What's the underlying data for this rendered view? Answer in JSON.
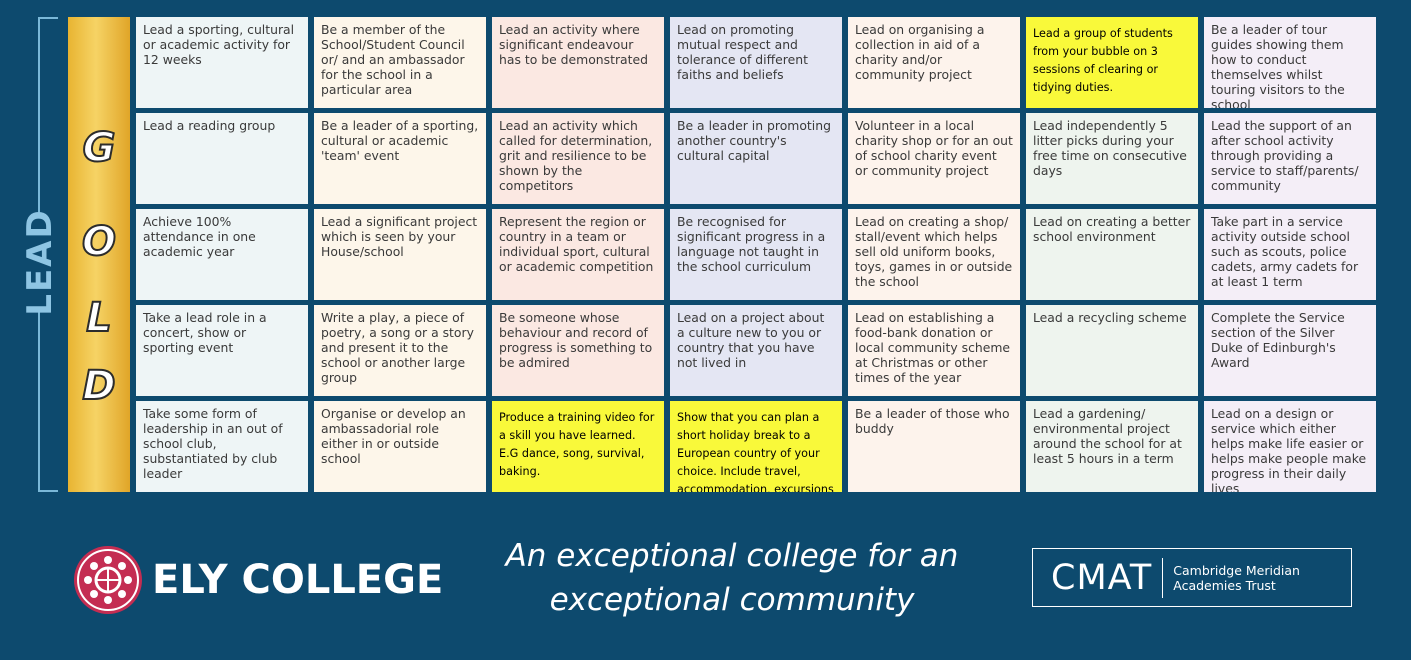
{
  "side_label": "LEAD",
  "level_letters": [
    "G",
    "O",
    "L",
    "D"
  ],
  "grid": {
    "rows": [
      [
        {
          "text": "Lead a sporting, cultural or academic activity for 12 weeks",
          "highlight": false
        },
        {
          "text": "Be a member of the School/Student Council or/ and an ambassador for the school in a particular area",
          "highlight": false
        },
        {
          "text": "Lead an activity where significant endeavour has to be demonstrated",
          "highlight": false
        },
        {
          "text": "Lead on promoting mutual respect and tolerance of different faiths and beliefs",
          "highlight": false
        },
        {
          "text": "Lead on organising a collection in aid of a charity and/or community project",
          "highlight": false
        },
        {
          "text": "Lead a group of students from your bubble on 3 sessions of clearing or tidying duties.",
          "highlight": true
        },
        {
          "text": "Be a leader of tour guides showing them how to conduct themselves whilst touring visitors to the school",
          "highlight": false
        }
      ],
      [
        {
          "text": "Lead a reading group",
          "highlight": false
        },
        {
          "text": "Be a leader of a sporting, cultural or academic 'team' event",
          "highlight": false
        },
        {
          "text": "Lead an activity which called for determination, grit and resilience to be shown by the competitors",
          "highlight": false
        },
        {
          "text": "Be a leader in promoting another country's cultural capital",
          "highlight": false
        },
        {
          "text": "Volunteer in a local charity shop or for an out of school charity event or community project",
          "highlight": false
        },
        {
          "text": "Lead independently 5 litter picks during your free time on consecutive days",
          "highlight": false
        },
        {
          "text": "Lead the support of an after school activity through providing a service to staff/parents/ community",
          "highlight": false
        }
      ],
      [
        {
          "text": "Achieve 100% attendance in one academic year",
          "highlight": false
        },
        {
          "text": "Lead a significant project which is seen by your House/school",
          "highlight": false
        },
        {
          "text": "Represent the region or country in a team or individual sport, cultural or academic competition",
          "highlight": false
        },
        {
          "text": "Be recognised for significant progress in a language not taught in the school curriculum",
          "highlight": false
        },
        {
          "text": "Lead on creating a shop/ stall/event which helps sell old uniform books, toys, games in or outside the school",
          "highlight": false
        },
        {
          "text": "Lead on creating a better school environment",
          "highlight": false
        },
        {
          "text": "Take part in a service activity outside school such as scouts, police cadets, army cadets for at least 1 term",
          "highlight": false
        }
      ],
      [
        {
          "text": "Take a lead role in a concert, show or sporting event",
          "highlight": false
        },
        {
          "text": "Write a play, a piece of poetry, a song or a story and present it to the school or another large group",
          "highlight": false
        },
        {
          "text": "Be someone whose behaviour and record of progress is something to be admired",
          "highlight": false
        },
        {
          "text": "Lead on a project about a culture new to you or country that you have not lived in",
          "highlight": false
        },
        {
          "text": "Lead on establishing a food-bank donation or local community scheme at Christmas or other times of the year",
          "highlight": false
        },
        {
          "text": "Lead a recycling scheme",
          "highlight": false
        },
        {
          "text": "Complete the Service section of the Silver Duke of Edinburgh's Award",
          "highlight": false
        }
      ],
      [
        {
          "text": "Take some form of leadership in an out of school club, substantiated by club leader",
          "highlight": false
        },
        {
          "text": "Organise or develop an ambassadorial role either in or outside school",
          "highlight": false
        },
        {
          "text": "Produce a training video for a skill you have learned. E.G dance, song, survival, baking.",
          "highlight": true
        },
        {
          "text": "Show that you can plan a short holiday break to a European country of your choice. Include travel, accommodation, excursions and all other costs.",
          "highlight": true
        },
        {
          "text": "Be a leader of those who buddy",
          "highlight": false
        },
        {
          "text": "Lead a gardening/ environmental project around the school for at least 5 hours in a term",
          "highlight": false
        },
        {
          "text": "Lead on a design or service which either helps make life easier or helps make people make progress in their daily lives",
          "highlight": false
        }
      ]
    ]
  },
  "footer": {
    "college_name": "ELY COLLEGE",
    "tagline_line1": "An exceptional college for an",
    "tagline_line2": "exceptional community",
    "cmat_abbr": "CMAT",
    "cmat_line1": "Cambridge Meridian",
    "cmat_line2": "Academies Trust"
  },
  "colors": {
    "background": "#0d4a6e",
    "gold": "#f2c94c",
    "highlight": "#f9f93a",
    "seal": "#c42d52"
  }
}
